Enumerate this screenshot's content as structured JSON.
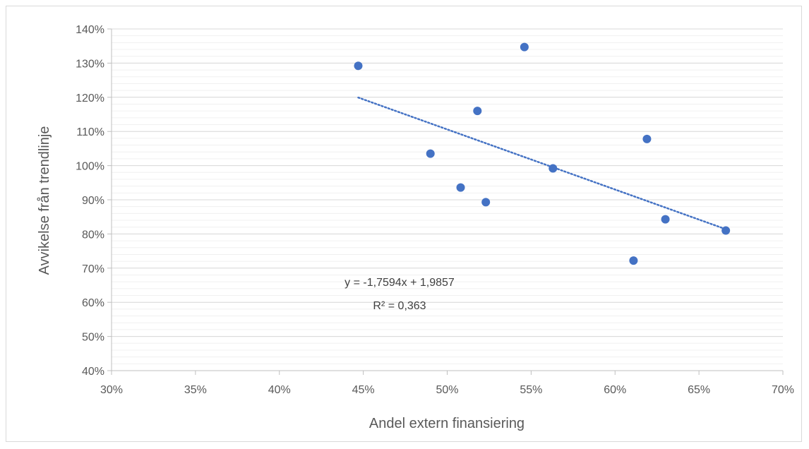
{
  "chart_data": {
    "type": "scatter",
    "title": "",
    "xlabel": "Andel extern finansiering",
    "ylabel": "Avvikelse från trendlinje",
    "xlim": [
      0.3,
      0.7
    ],
    "ylim": [
      0.4,
      1.4
    ],
    "x_ticks": [
      0.3,
      0.35,
      0.4,
      0.45,
      0.5,
      0.55,
      0.6,
      0.65,
      0.7
    ],
    "y_ticks": [
      0.4,
      0.5,
      0.6,
      0.7,
      0.8,
      0.9,
      1.0,
      1.1,
      1.2,
      1.3,
      1.4
    ],
    "x_tick_labels": [
      "30%",
      "35%",
      "40%",
      "45%",
      "50%",
      "55%",
      "60%",
      "65%",
      "70%"
    ],
    "y_tick_labels": [
      "40%",
      "50%",
      "60%",
      "70%",
      "80%",
      "90%",
      "100%",
      "110%",
      "120%",
      "130%",
      "140%"
    ],
    "grid": {
      "major": true,
      "minor_y_step": 0.02
    },
    "series": [
      {
        "color": "#4472C4",
        "points": [
          {
            "x": 0.447,
            "y": 1.292
          },
          {
            "x": 0.546,
            "y": 1.347
          },
          {
            "x": 0.518,
            "y": 1.16
          },
          {
            "x": 0.49,
            "y": 1.035
          },
          {
            "x": 0.508,
            "y": 0.936
          },
          {
            "x": 0.523,
            "y": 0.893
          },
          {
            "x": 0.563,
            "y": 0.992
          },
          {
            "x": 0.619,
            "y": 1.078
          },
          {
            "x": 0.63,
            "y": 0.843
          },
          {
            "x": 0.666,
            "y": 0.81
          },
          {
            "x": 0.611,
            "y": 0.722
          }
        ]
      }
    ],
    "trendline": {
      "type": "linear",
      "slope": -1.7594,
      "intercept": 1.9857,
      "x_range": [
        0.447,
        0.666
      ],
      "color": "#4472C4",
      "style": "dotted",
      "equation_label": "y = -1,7594x + 1,9857",
      "r2_label": "R² = 0,363"
    }
  }
}
